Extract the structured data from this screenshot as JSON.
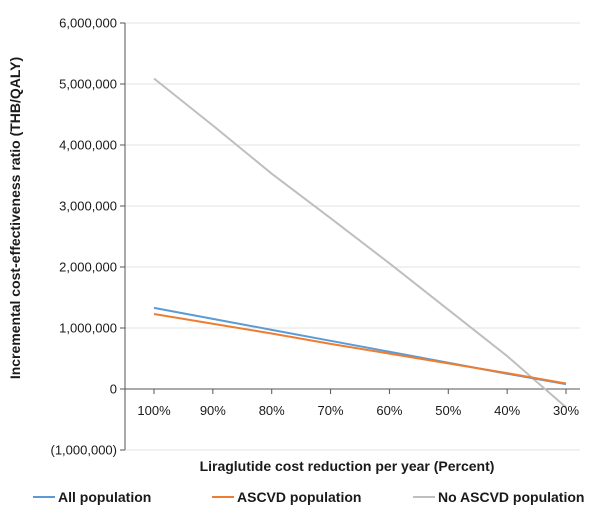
{
  "chart_data": {
    "type": "line",
    "title": "",
    "xlabel": "Liraglutide cost reduction per year (Percent)",
    "ylabel": "Incremental cost-effectiveness ratio (THB/QALY)",
    "categories": [
      "100%",
      "90%",
      "80%",
      "70%",
      "60%",
      "50%",
      "40%",
      "30%"
    ],
    "ylim": [
      -1000000,
      6000000
    ],
    "yticks": [
      -1000000,
      0,
      1000000,
      2000000,
      3000000,
      4000000,
      5000000,
      6000000
    ],
    "ytick_labels": [
      "(1,000,000)",
      "0",
      "1,000,000",
      "2,000,000",
      "3,000,000",
      "4,000,000",
      "5,000,000",
      "6,000,000"
    ],
    "grid": true,
    "legend_position": "bottom",
    "series": [
      {
        "name": "All population",
        "color": "#5b9bd5",
        "values": [
          1330000,
          1150000,
          970000,
          790000,
          610000,
          430000,
          250000,
          80000
        ]
      },
      {
        "name": "ASCVD population",
        "color": "#ed7d31",
        "values": [
          1230000,
          1070000,
          910000,
          740000,
          580000,
          420000,
          260000,
          90000
        ]
      },
      {
        "name": "No ASCVD population",
        "color": "#bfbfbf",
        "values": [
          5090000,
          4320000,
          3530000,
          2800000,
          2060000,
          1300000,
          540000,
          -300000
        ]
      }
    ]
  }
}
